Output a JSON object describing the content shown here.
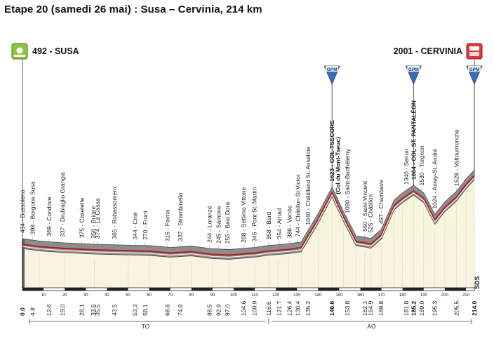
{
  "header": {
    "title": "Etape 20 (samedi 26 mai) : Susa – Cervinia, 214 km"
  },
  "start": {
    "altitude": "492",
    "name": "SUSA",
    "label": "492 - SUSA"
  },
  "finish": {
    "altitude": "2001",
    "name": "CERVINIA",
    "label": "2001 - CERVINIA"
  },
  "gpm_markers": [
    {
      "label": "GPM",
      "km": 146.6
    },
    {
      "label": "GPM",
      "km": 185.2
    },
    {
      "label": "GPM",
      "km": 214.0
    }
  ],
  "logo_text": "SDS",
  "sections": {
    "left": "TO",
    "right": "AO"
  },
  "axis": {
    "km_ticks": [
      "10",
      "20",
      "30",
      "40",
      "50",
      "60",
      "70",
      "80",
      "90",
      "100",
      "110",
      "120",
      "130",
      "140",
      "150",
      "160",
      "170",
      "180",
      "190",
      "200",
      "210"
    ]
  },
  "profile_points": [
    [
      0,
      492
    ],
    [
      8,
      440
    ],
    [
      20,
      400
    ],
    [
      34,
      370
    ],
    [
      50,
      350
    ],
    [
      60,
      340
    ],
    [
      70,
      300
    ],
    [
      80,
      330
    ],
    [
      90,
      270
    ],
    [
      98,
      255
    ],
    [
      110,
      300
    ],
    [
      116.6,
      345
    ],
    [
      121,
      360
    ],
    [
      126,
      380
    ],
    [
      132,
      420
    ],
    [
      140,
      1040
    ],
    [
      146.6,
      1623
    ],
    [
      152,
      1090
    ],
    [
      158,
      550
    ],
    [
      162.1,
      525
    ],
    [
      165,
      497
    ],
    [
      170,
      700
    ],
    [
      176,
      1340
    ],
    [
      180,
      1500
    ],
    [
      185.2,
      1664
    ],
    [
      190,
      1500
    ],
    [
      195.3,
      1024
    ],
    [
      200,
      1300
    ],
    [
      205.5,
      1528
    ],
    [
      210,
      1800
    ],
    [
      214,
      2001
    ]
  ],
  "waypoints": [
    {
      "name": "434 - Bussoleno",
      "km": "0.0"
    },
    {
      "name": "398 - Borgone Susa",
      "km": "4.8"
    },
    {
      "name": "369 - Condove",
      "km": "12.6"
    },
    {
      "name": "337 - Drubiaglio Grangia",
      "km": "19.0"
    },
    {
      "name": "375 - Caselette",
      "km": "28.1"
    },
    {
      "name": "356 - Brione",
      "km": "33.6"
    },
    {
      "name": "374 - La Cassa",
      "km": "35.5"
    },
    {
      "name": "365 - Robassomero",
      "km": "43.5"
    },
    {
      "name": "344 - Ciriè",
      "km": "53.3"
    },
    {
      "name": "270 - Front",
      "km": "58.1"
    },
    {
      "name": "315 - Favria",
      "km": "68.6"
    },
    {
      "name": "337 - Strambinello",
      "km": "74.8"
    },
    {
      "name": "244 - Loranzè",
      "km": "88.5"
    },
    {
      "name": "245 - Samone",
      "km": "92.9"
    },
    {
      "name": "255 - Baio Dora",
      "km": "97.0"
    },
    {
      "name": "288 - Settimo Vittone",
      "km": "104.6"
    },
    {
      "name": "345 - Pont St. Martin",
      "km": "109.9"
    },
    {
      "name": "358 - Bard",
      "km": "116.6"
    },
    {
      "name": "354 - Arnad",
      "km": "121.7"
    },
    {
      "name": "386 - Verrès",
      "km": "126.4"
    },
    {
      "name": "744 - Châtillon St.Victor",
      "km": "130.4"
    },
    {
      "name": "1040 - Châtilland St. Anselme",
      "km": "135.2"
    },
    {
      "name": "1623 - COL TSECORE",
      "km": "146.6",
      "bold": true
    },
    {
      "name": "(Col du Mont-Tseuc)",
      "km": "",
      "bold": true
    },
    {
      "name": "1090 - Saint-Barthélemy",
      "km": "153.8"
    },
    {
      "name": "550 - Saint-Vincent",
      "km": "162.1"
    },
    {
      "name": "525 - Châtillon",
      "km": "164.9"
    },
    {
      "name": "497 - Chambave",
      "km": "169.8"
    },
    {
      "name": "1340 - Senon",
      "km": "181.8"
    },
    {
      "name": "1664 - COL ST. PANTALÉON",
      "km": "185.2",
      "bold": true
    },
    {
      "name": "1530 - Torgnon",
      "km": "189.0"
    },
    {
      "name": "1024 - Antey-St. André",
      "km": "195.3"
    },
    {
      "name": "1528 - Valtournenche",
      "km": "205.5"
    },
    {
      "name": "",
      "km": "214.0"
    }
  ]
}
